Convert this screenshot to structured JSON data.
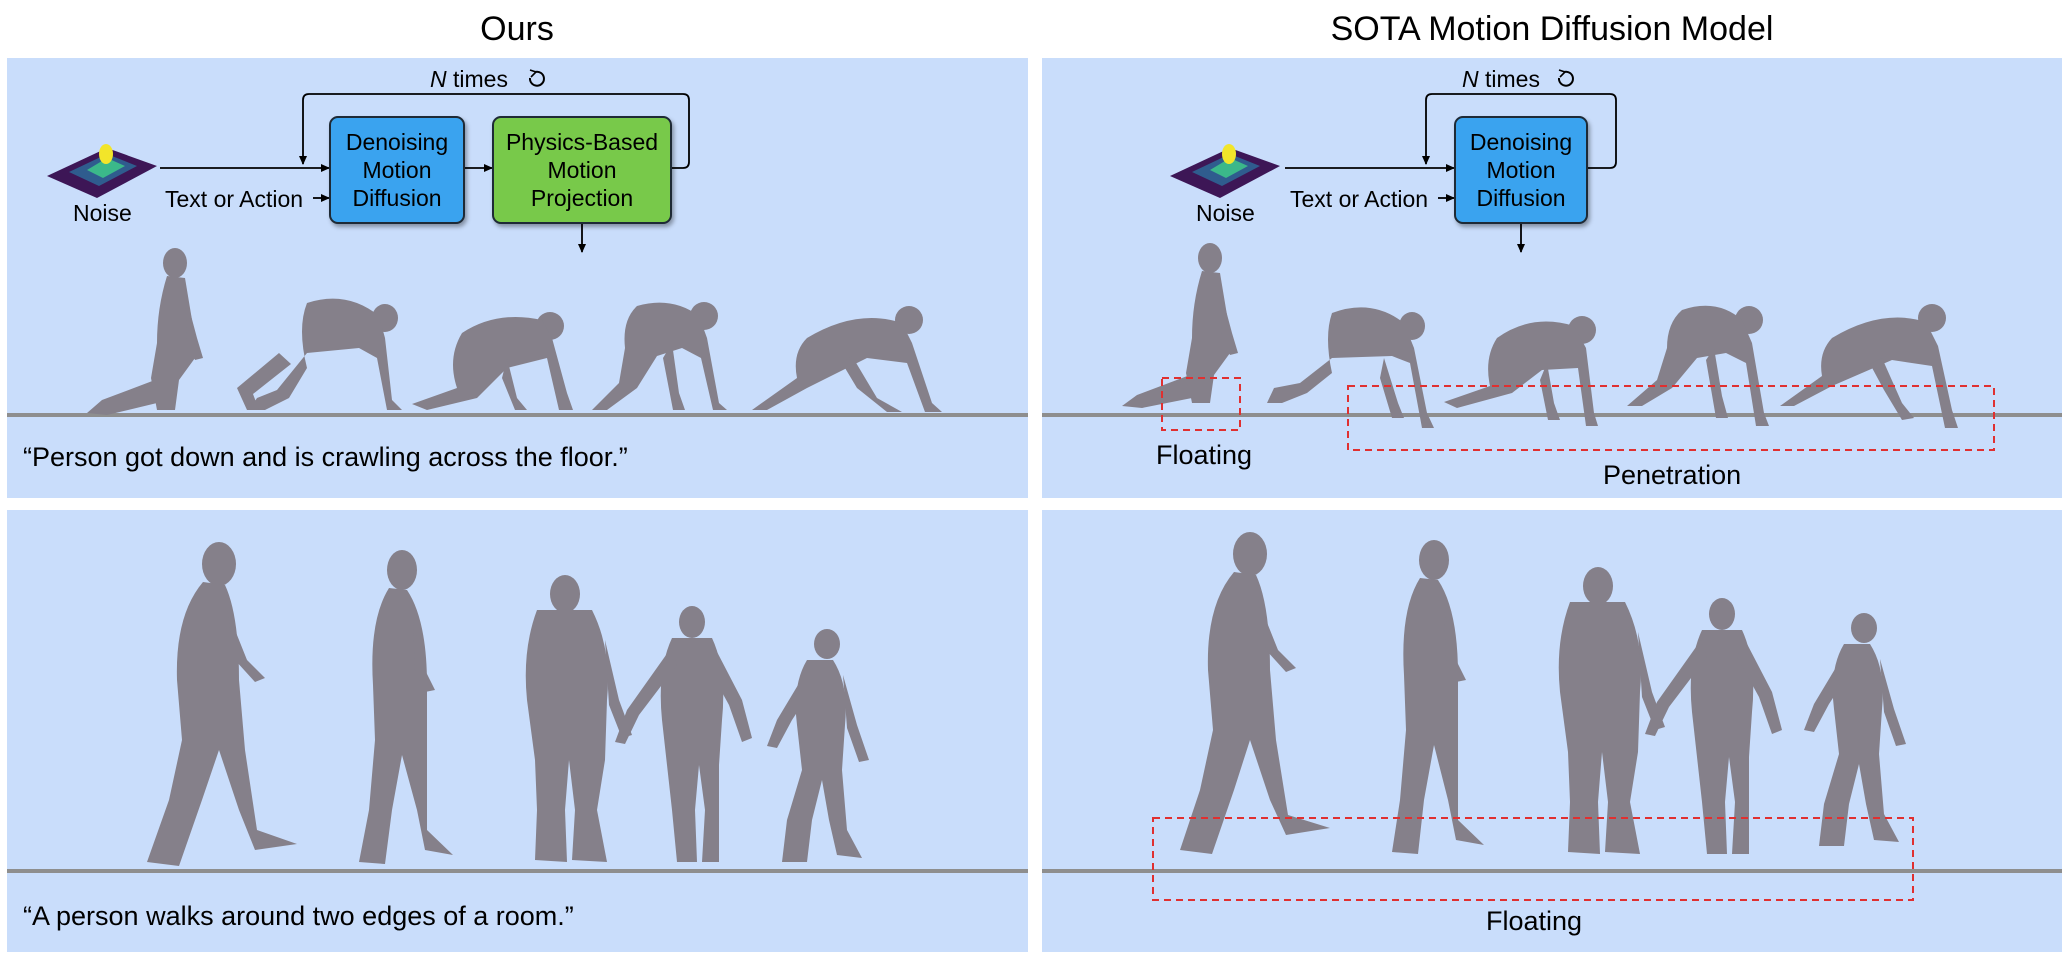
{
  "columns": {
    "left_title": "Ours",
    "right_title": "SOTA Motion Diffusion Model"
  },
  "pipeline_left": {
    "loop_label_n": "N",
    "loop_label_times": "times",
    "noise_label": "Noise",
    "input_label": "Text or Action",
    "denoise_line1": "Denoising",
    "denoise_line2": "Motion",
    "denoise_line3": "Diffusion",
    "physics_line1": "Physics-Based",
    "physics_line2": "Motion",
    "physics_line3": "Projection"
  },
  "pipeline_right": {
    "loop_label_n": "N",
    "loop_label_times": "times",
    "noise_label": "Noise",
    "input_label": "Text or Action",
    "denoise_line1": "Denoising",
    "denoise_line2": "Motion",
    "denoise_line3": "Diffusion"
  },
  "rows": {
    "crawl_caption": "“Person got down and is crawling across the floor.”",
    "walk_caption": "“A person walks around two edges of a room.”"
  },
  "annotations": {
    "floating_top": "Floating",
    "penetration": "Penetration",
    "floating_bottom": "Floating"
  },
  "colors": {
    "panel_bg": "#c9ddfb",
    "denoise_box": "#3aa3ef",
    "physics_box": "#78c94a",
    "figure": "#85808a",
    "floor": "#8e8e8e",
    "annotation_dash": "#e03030"
  }
}
